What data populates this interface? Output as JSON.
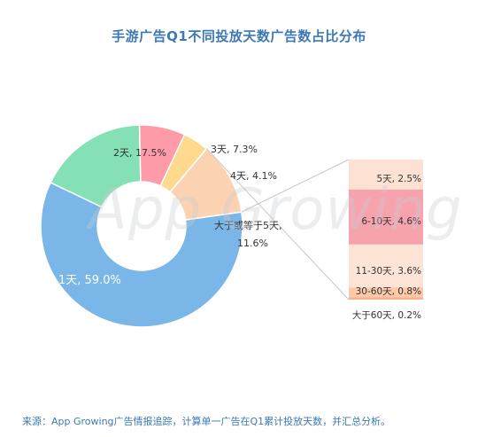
{
  "chart_data": {
    "type": "pie",
    "variant": "donut-with-breakdown",
    "title": "手游广告Q1不同投放天数广告数占比分布",
    "slices": [
      {
        "label": "1天, 59.0%",
        "value": 59.0,
        "color": "#7ab6e8"
      },
      {
        "label": "2天, 17.5%",
        "value": 17.5,
        "color": "#85e0b6"
      },
      {
        "label": "3天, 7.3%",
        "value": 7.3,
        "color": "#ff9aa8"
      },
      {
        "label": "4天, 4.1%",
        "value": 4.1,
        "color": "#ffd98e"
      },
      {
        "label": "大于或等于5天, 11.6%",
        "value": 11.6,
        "color": "#fbd3b2"
      }
    ],
    "breakdown": {
      "parent": "大于或等于5天",
      "segments": [
        {
          "label": "5天, 2.5%",
          "value": 2.5,
          "color": "#fde1d2"
        },
        {
          "label": "6-10天, 4.6%",
          "value": 4.6,
          "color": "#f7a3ad"
        },
        {
          "label": "11-30天, 3.6%",
          "value": 3.6,
          "color": "#fde4d6"
        },
        {
          "label": "30-60天, 0.8%",
          "value": 0.8,
          "color": "#fcc9a9"
        },
        {
          "label": "大于60天, 0.2%",
          "value": 0.2,
          "color": "#f8b18c"
        }
      ]
    }
  },
  "watermark": "App Growing",
  "source": "来源：App Growing广告情报追踪，计算单一广告在Q1累计投放天数，并汇总分析。"
}
